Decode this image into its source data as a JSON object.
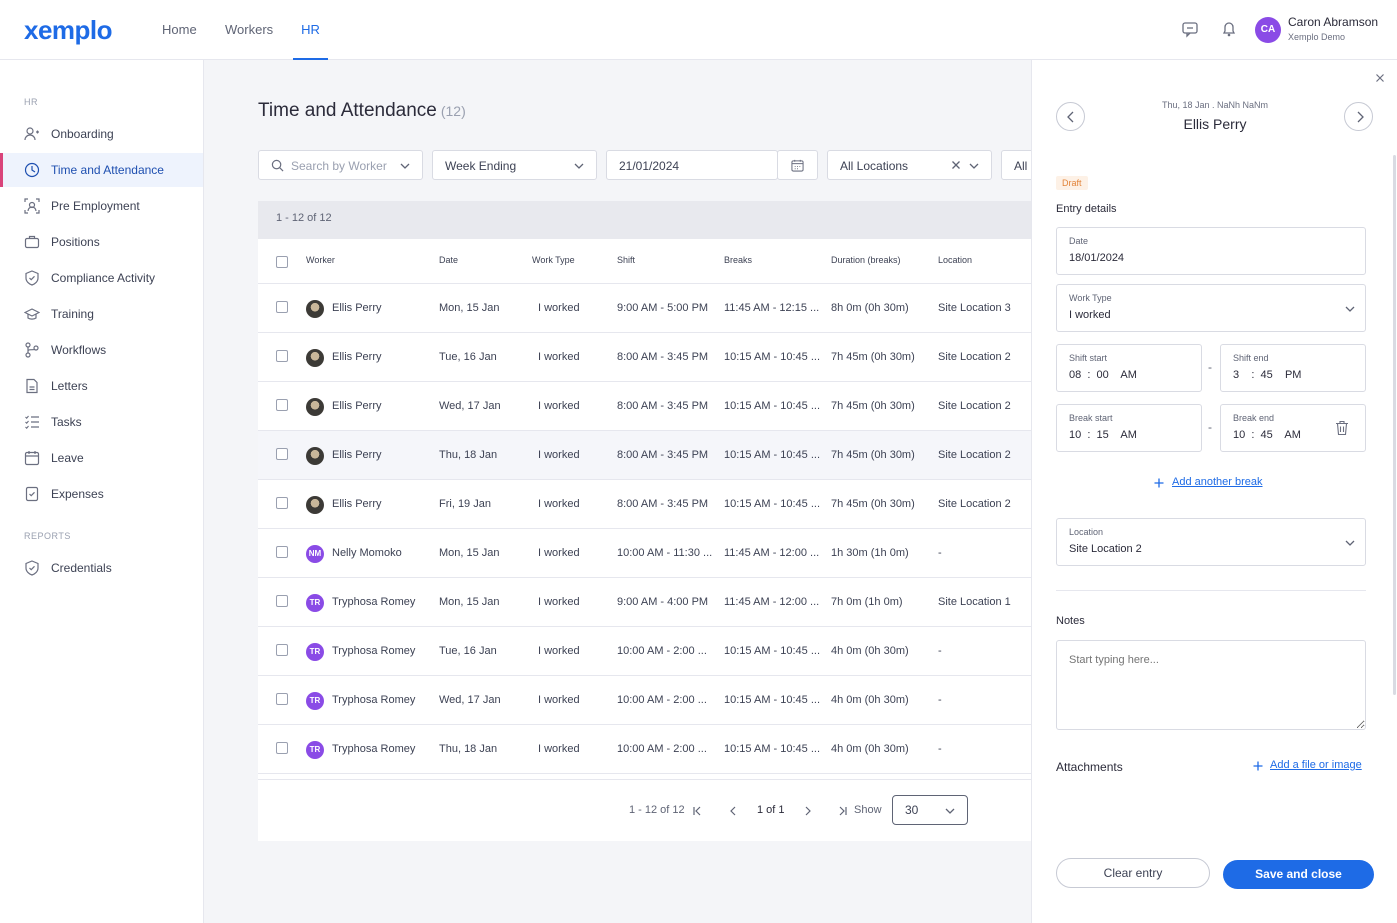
{
  "brand": {
    "logo": "xemplo",
    "accent": "#1e6be6"
  },
  "topnav": {
    "items": [
      "Home",
      "Workers",
      "HR"
    ],
    "active": "HR"
  },
  "user": {
    "initials": "CA",
    "name": "Caron Abramson",
    "org": "Xemplo Demo"
  },
  "sidebar": {
    "section_hr": "HR",
    "items": [
      {
        "label": "Onboarding",
        "icon": "user-plus-icon"
      },
      {
        "label": "Time and Attendance",
        "icon": "clock-icon"
      },
      {
        "label": "Pre Employment",
        "icon": "person-frame-icon"
      },
      {
        "label": "Positions",
        "icon": "briefcase-icon"
      },
      {
        "label": "Compliance Activity",
        "icon": "shield-check-icon"
      },
      {
        "label": "Training",
        "icon": "graduation-cap-icon"
      },
      {
        "label": "Workflows",
        "icon": "workflow-icon"
      },
      {
        "label": "Letters",
        "icon": "letter-icon"
      },
      {
        "label": "Tasks",
        "icon": "tasks-icon"
      },
      {
        "label": "Leave",
        "icon": "calendar-icon"
      },
      {
        "label": "Expenses",
        "icon": "receipt-icon"
      }
    ],
    "section_reports": "REPORTS",
    "report_items": [
      {
        "label": "Credentials",
        "icon": "badge-check-icon"
      }
    ]
  },
  "page": {
    "title": "Time and Attendance",
    "count": "(12)"
  },
  "filters": {
    "search_placeholder": "Search by Worker",
    "period": "Week Ending",
    "date": "21/01/2024",
    "location": "All Locations",
    "more": "All S"
  },
  "table": {
    "count_text": "1 - 12 of 12",
    "headers": [
      "Worker",
      "Date",
      "Work Type",
      "Shift",
      "Breaks",
      "Duration (breaks)",
      "Location"
    ],
    "rows": [
      {
        "avatar": "photo",
        "initials": "",
        "worker": "Ellis Perry",
        "date": "Mon, 15 Jan",
        "type": "I worked",
        "shift": "9:00 AM - 5:00 PM",
        "breaks": "11:45 AM - 12:15 ...",
        "duration": "8h 0m (0h 30m)",
        "location": "Site Location 3"
      },
      {
        "avatar": "photo",
        "initials": "",
        "worker": "Ellis Perry",
        "date": "Tue, 16 Jan",
        "type": "I worked",
        "shift": "8:00 AM - 3:45 PM",
        "breaks": "10:15 AM - 10:45 ...",
        "duration": "7h 45m (0h 30m)",
        "location": "Site Location 2"
      },
      {
        "avatar": "photo",
        "initials": "",
        "worker": "Ellis Perry",
        "date": "Wed, 17 Jan",
        "type": "I worked",
        "shift": "8:00 AM - 3:45 PM",
        "breaks": "10:15 AM - 10:45 ...",
        "duration": "7h 45m (0h 30m)",
        "location": "Site Location 2"
      },
      {
        "avatar": "photo",
        "initials": "",
        "worker": "Ellis Perry",
        "date": "Thu, 18 Jan",
        "type": "I worked",
        "shift": "8:00 AM - 3:45 PM",
        "breaks": "10:15 AM - 10:45 ...",
        "duration": "7h 45m (0h 30m)",
        "location": "Site Location 2"
      },
      {
        "avatar": "photo",
        "initials": "",
        "worker": "Ellis Perry",
        "date": "Fri, 19 Jan",
        "type": "I worked",
        "shift": "8:00 AM - 3:45 PM",
        "breaks": "10:15 AM - 10:45 ...",
        "duration": "7h 45m (0h 30m)",
        "location": "Site Location 2"
      },
      {
        "avatar": "initials",
        "initials": "NM",
        "worker": "Nelly Momoko",
        "date": "Mon, 15 Jan",
        "type": "I worked",
        "shift": "10:00 AM - 11:30 ...",
        "breaks": "11:45 AM - 12:00 ...",
        "duration": "1h 30m (1h 0m)",
        "location": "-"
      },
      {
        "avatar": "initials",
        "initials": "TR",
        "worker": "Tryphosa Romey",
        "date": "Mon, 15 Jan",
        "type": "I worked",
        "shift": "9:00 AM - 4:00 PM",
        "breaks": "11:45 AM - 12:00 ...",
        "duration": "7h 0m (1h 0m)",
        "location": "Site Location 1"
      },
      {
        "avatar": "initials",
        "initials": "TR",
        "worker": "Tryphosa Romey",
        "date": "Tue, 16 Jan",
        "type": "I worked",
        "shift": "10:00 AM - 2:00 ...",
        "breaks": "10:15 AM - 10:45 ...",
        "duration": "4h 0m (0h 30m)",
        "location": "-"
      },
      {
        "avatar": "initials",
        "initials": "TR",
        "worker": "Tryphosa Romey",
        "date": "Wed, 17 Jan",
        "type": "I worked",
        "shift": "10:00 AM - 2:00 ...",
        "breaks": "10:15 AM - 10:45 ...",
        "duration": "4h 0m (0h 30m)",
        "location": "-"
      },
      {
        "avatar": "initials",
        "initials": "TR",
        "worker": "Tryphosa Romey",
        "date": "Thu, 18 Jan",
        "type": "I worked",
        "shift": "10:00 AM - 2:00 ...",
        "breaks": "10:15 AM - 10:45 ...",
        "duration": "4h 0m (0h 30m)",
        "location": "-"
      }
    ]
  },
  "pagination": {
    "range": "1 - 12 of 12",
    "page": "1 of 1",
    "show_label": "Show",
    "show_value": "30"
  },
  "panel": {
    "date_line": "Thu, 18 Jan . NaNh NaNm",
    "worker": "Ellis Perry",
    "status": "Draft",
    "entry_title": "Entry details",
    "date_label": "Date",
    "date_value": "18/01/2024",
    "worktype_label": "Work Type",
    "worktype_value": "I worked",
    "shift_start_label": "Shift start",
    "shift_start_value": "08  :  00    AM",
    "shift_end_label": "Shift end",
    "shift_end_value": "3    :  45    PM",
    "break_start_label": "Break start",
    "break_start_value": "10  :  15    AM",
    "break_end_label": "Break end",
    "break_end_value": "10  :  45    AM",
    "dash": "-",
    "add_break": "Add another break",
    "location_label": "Location",
    "location_value": "Site Location 2",
    "notes_label": "Notes",
    "notes_placeholder": "Start typing here...",
    "attachments_label": "Attachments",
    "add_file": "Add a file or image",
    "clear_button": "Clear entry",
    "save_button": "Save and close"
  }
}
